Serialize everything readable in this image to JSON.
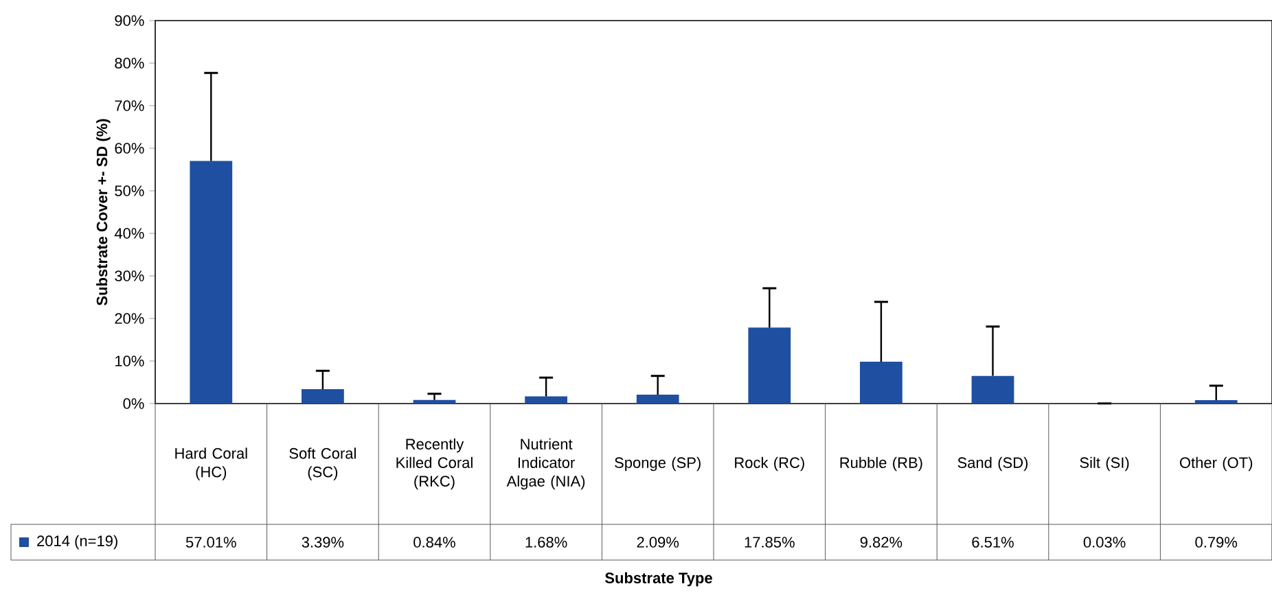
{
  "chart_data": {
    "type": "bar",
    "annotations": [
      "Substrate Type"
    ],
    "ylabel": "Substrate Cover +- SD (%)",
    "categories": [
      "Hard Coral (HC)",
      "Soft Coral (SC)",
      "Recently Killed Coral (RKC)",
      "Nutrient Indicator Algae (NIA)",
      "Sponge (SP)",
      "Rock (RC)",
      "Rubble (RB)",
      "Sand (SD)",
      "Silt (SI)",
      "Other (OT)"
    ],
    "series": [
      {
        "name": "2014 (n=19)",
        "color": "#1f4fa0",
        "values": [
          57.01,
          3.39,
          0.84,
          1.68,
          2.09,
          17.85,
          9.82,
          6.51,
          0.03,
          0.79
        ],
        "value_labels": [
          "57.01%",
          "3.39%",
          "0.84%",
          "1.68%",
          "2.09%",
          "17.85%",
          "9.82%",
          "6.51%",
          "0.03%",
          "0.79%"
        ],
        "errors": [
          [
            57.01,
            77.7
          ],
          [
            3.39,
            7.7
          ],
          [
            0.84,
            2.3
          ],
          [
            1.68,
            6.1
          ],
          [
            2.09,
            6.5
          ],
          [
            17.85,
            27.1
          ],
          [
            9.82,
            23.9
          ],
          [
            6.51,
            18.1
          ],
          [
            0.03,
            0.03
          ],
          [
            0.79,
            4.2
          ]
        ]
      }
    ],
    "ylim": [
      0,
      90
    ],
    "yticks": [
      {
        "value": 0,
        "label": "0%"
      },
      {
        "value": 10,
        "label": "10%"
      },
      {
        "value": 20,
        "label": "20%"
      },
      {
        "value": 30,
        "label": "30%"
      },
      {
        "value": 40,
        "label": "40%"
      },
      {
        "value": 50,
        "label": "50%"
      },
      {
        "value": 60,
        "label": "60%"
      },
      {
        "value": 70,
        "label": "70%"
      },
      {
        "value": 80,
        "label": "80%"
      },
      {
        "value": 90,
        "label": "90%"
      }
    ],
    "grid": false,
    "legend": "bottom"
  }
}
